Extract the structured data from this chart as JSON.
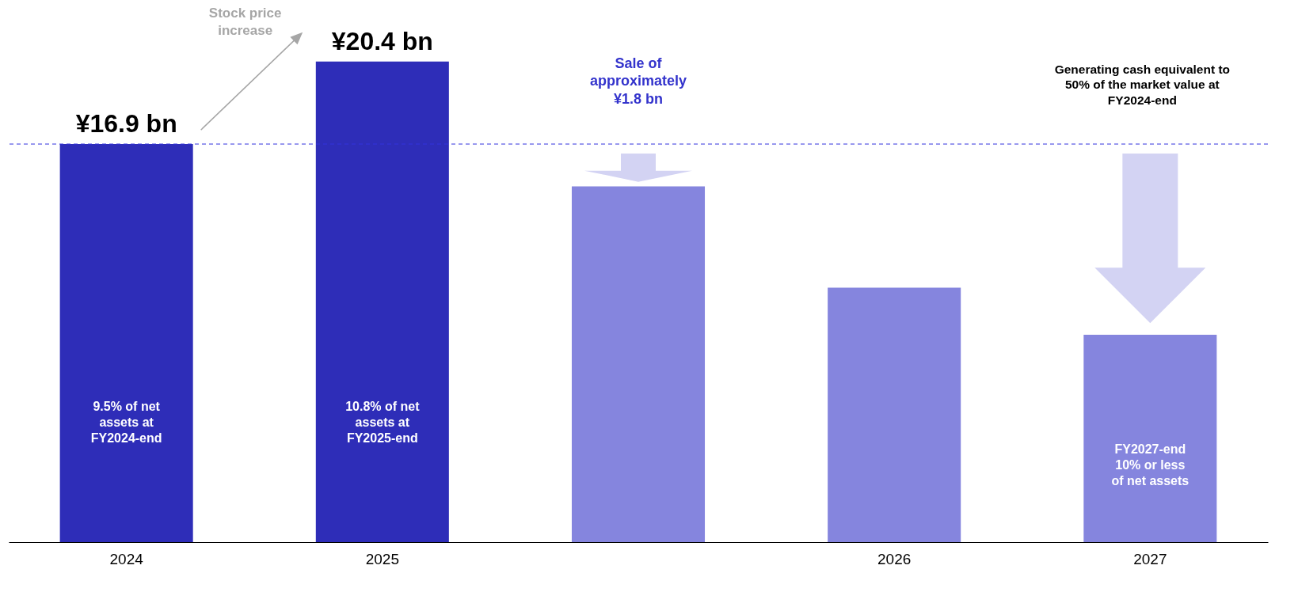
{
  "chart_data": {
    "type": "bar",
    "categories": [
      "2024",
      "2025",
      null,
      "2026",
      "2027"
    ],
    "values": [
      16.9,
      20.4,
      15.1,
      10.8,
      8.8
    ],
    "colors": [
      "#2e2db8",
      "#2e2db8",
      "#8585de",
      "#8585de",
      "#8585de"
    ],
    "value_labels": [
      "¥16.9 bn",
      "¥20.4 bn",
      null,
      null,
      null
    ],
    "ref_lines": [
      {
        "axis": "y",
        "value": 16.9,
        "color": "#3333dd",
        "line_style": "dashed"
      }
    ],
    "tick_labels": "x",
    "annotations": [
      "Stock price increase",
      "Sale of approximately ¥1.8 bn",
      "Generating cash equivalent to 50% of the market value at FY2024-end",
      "9.5% of net assets at FY2024-end",
      "10.8% of net assets at FY2025-end",
      "FY2027-end 10% or less of net assets"
    ]
  }
}
